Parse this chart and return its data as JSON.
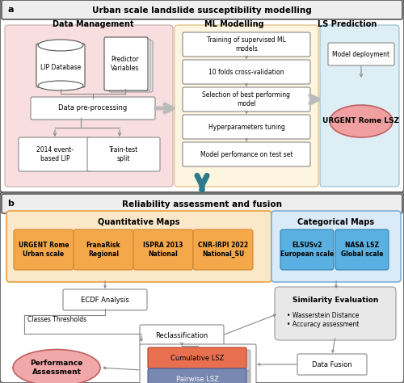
{
  "fig_width": 5.0,
  "fig_height": 4.74,
  "dpi": 100,
  "bg_color": "#ffffff",
  "panel_a": {
    "title": "Urban scale landslide susceptibility modelling",
    "label": "a",
    "dm_bg": "#f8dede",
    "ml_bg": "#fdf5e0",
    "ls_bg": "#deeef5",
    "dm_title": "Data Management",
    "ml_title": "ML Modelling",
    "ls_title": "LS Prediction",
    "ml_boxes": [
      "Training of supervised ML\nmodels",
      "10 folds cross-validation",
      "Selection of best performing\nmodel",
      "Hyperparameters tuning",
      "Model perfomance on test set"
    ],
    "lip_db": "LIP Database",
    "pred_var": "Predictor\nVariables",
    "data_preproc": "Data pre-processing",
    "event_lip": "2014 event-\nbased LIP",
    "train_test": "Train-test\nsplit",
    "model_deploy": "Model deployment",
    "urgent_lsz": "URGENT Rome LSZ"
  },
  "panel_b": {
    "title": "Reliability assessment and fusion",
    "label": "b",
    "qm_bg": "#fbe8c8",
    "qm_border": "#e8a040",
    "cm_bg": "#daeaf8",
    "cm_border": "#7ab0d8",
    "qm_title": "Quantitative Maps",
    "cm_title": "Categorical Maps",
    "quant_items": [
      "URGENT Rome\nUrban scale",
      "FranaRisk\nRegional",
      "ISPRA 2013\nNational",
      "CNR-IRPI 2022\nNational_SU"
    ],
    "cat_items": [
      "ELSUSv2\nEuropean scale",
      "NASA LSZ\nGlobal scale"
    ],
    "ecdf": "ECDF Analysis",
    "classes_thresholds": "Classes Thresholds",
    "reclass": "Reclassification",
    "sim_eval_title": "Similarity Evaluation",
    "sim_eval_bullets": "• Wasserstein Distance\n• Accuracy assessment",
    "cumulative": "Cumulative LSZ",
    "pairwise": "Pairwise LSZ",
    "data_fusion": "Data Fusion",
    "perf_assess": "Performance\nAssessment"
  },
  "colors": {
    "panel_border": "#555555",
    "title_bar_bg": "#eeeeee",
    "box_border": "#888888",
    "box_bg": "#ffffff",
    "arrow_gray": "#999999",
    "arrow_teal": "#2d7a8a",
    "quant_fill": "#f5a84a",
    "quant_border": "#d08830",
    "cat_fill": "#5ab0e0",
    "cat_border": "#3080b0",
    "urgent_fill": "#f0a0a0",
    "urgent_border": "#c06060",
    "perf_fill": "#f0a8a8",
    "perf_border": "#c06060",
    "cum_fill": "#e87050",
    "cum_border": "#b04020",
    "pair_fill": "#7888b0",
    "pair_border": "#4860a0",
    "se_bg": "#e8e8e8",
    "se_border": "#999999",
    "big_arrow_teal": "#2d7a8a"
  }
}
